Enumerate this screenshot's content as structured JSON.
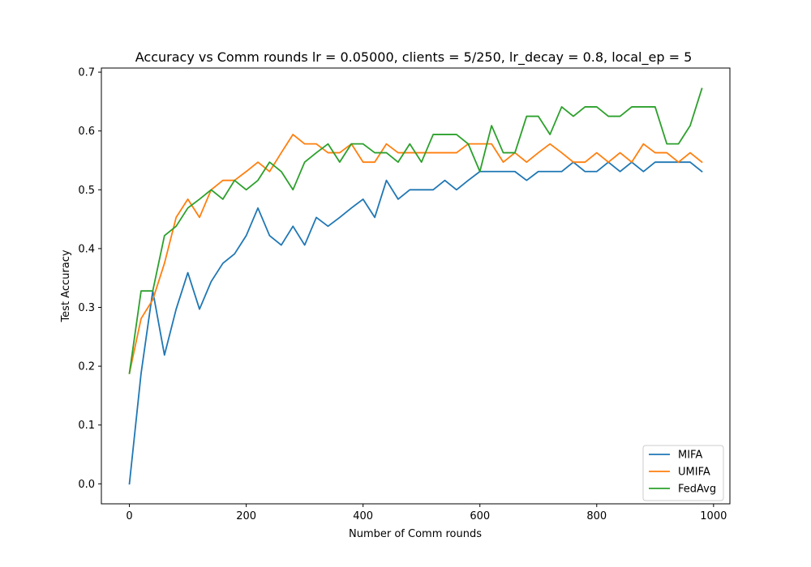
{
  "chart_data": {
    "type": "line",
    "title": "Accuracy vs Comm rounds lr = 0.05000, clients = 5/250, lr_decay = 0.8, local_ep = 5",
    "xlabel": "Number of Comm rounds",
    "ylabel": "Test Accuracy",
    "xlim": [
      -48,
      1028
    ],
    "ylim": [
      -0.034,
      0.707
    ],
    "xticks": [
      0,
      200,
      400,
      600,
      800,
      1000
    ],
    "yticks": [
      0.0,
      0.1,
      0.2,
      0.3,
      0.4,
      0.5,
      0.6,
      0.7
    ],
    "xtick_labels": [
      "0",
      "200",
      "400",
      "600",
      "800",
      "1000"
    ],
    "ytick_labels": [
      "0.0",
      "0.1",
      "0.2",
      "0.3",
      "0.4",
      "0.5",
      "0.6",
      "0.7"
    ],
    "grid": false,
    "legend_position": "bottom-right",
    "x": [
      0,
      20,
      40,
      60,
      80,
      100,
      120,
      140,
      160,
      180,
      200,
      220,
      240,
      260,
      280,
      300,
      320,
      340,
      360,
      380,
      400,
      420,
      440,
      460,
      480,
      500,
      520,
      540,
      560,
      580,
      600,
      620,
      640,
      660,
      680,
      700,
      720,
      740,
      760,
      780,
      800,
      820,
      840,
      860,
      880,
      900,
      920,
      940,
      960,
      980
    ],
    "series": [
      {
        "name": "MIFA",
        "color": "#1f77b4",
        "values": [
          0.0,
          0.188,
          0.328,
          0.219,
          0.297,
          0.359,
          0.297,
          0.344,
          0.375,
          0.391,
          0.422,
          0.469,
          0.422,
          0.406,
          0.438,
          0.406,
          0.453,
          0.438,
          0.453,
          0.469,
          0.484,
          0.453,
          0.516,
          0.484,
          0.5,
          0.5,
          0.5,
          0.516,
          0.5,
          0.516,
          0.531,
          0.531,
          0.531,
          0.531,
          0.516,
          0.531,
          0.531,
          0.531,
          0.547,
          0.531,
          0.531,
          0.547,
          0.531,
          0.547,
          0.531,
          0.547,
          0.547,
          0.547,
          0.547,
          0.531
        ]
      },
      {
        "name": "UMIFA",
        "color": "#ff7f0e",
        "values": [
          0.188,
          0.281,
          0.313,
          0.375,
          0.453,
          0.484,
          0.453,
          0.5,
          0.516,
          0.516,
          0.531,
          0.547,
          0.531,
          0.563,
          0.594,
          0.578,
          0.578,
          0.563,
          0.563,
          0.578,
          0.547,
          0.547,
          0.578,
          0.563,
          0.563,
          0.563,
          0.563,
          0.563,
          0.563,
          0.578,
          0.578,
          0.578,
          0.547,
          0.563,
          0.547,
          0.563,
          0.578,
          0.563,
          0.547,
          0.547,
          0.563,
          0.547,
          0.563,
          0.547,
          0.578,
          0.563,
          0.563,
          0.547,
          0.563,
          0.547
        ]
      },
      {
        "name": "FedAvg",
        "color": "#2ca02c",
        "values": [
          0.188,
          0.328,
          0.328,
          0.422,
          0.438,
          0.469,
          0.484,
          0.5,
          0.484,
          0.516,
          0.5,
          0.516,
          0.547,
          0.531,
          0.5,
          0.547,
          0.563,
          0.578,
          0.547,
          0.578,
          0.578,
          0.563,
          0.563,
          0.547,
          0.578,
          0.547,
          0.594,
          0.594,
          0.594,
          0.578,
          0.531,
          0.609,
          0.563,
          0.563,
          0.625,
          0.625,
          0.594,
          0.641,
          0.625,
          0.641,
          0.641,
          0.625,
          0.625,
          0.641,
          0.641,
          0.641,
          0.578,
          0.578,
          0.609,
          0.672
        ]
      }
    ]
  }
}
